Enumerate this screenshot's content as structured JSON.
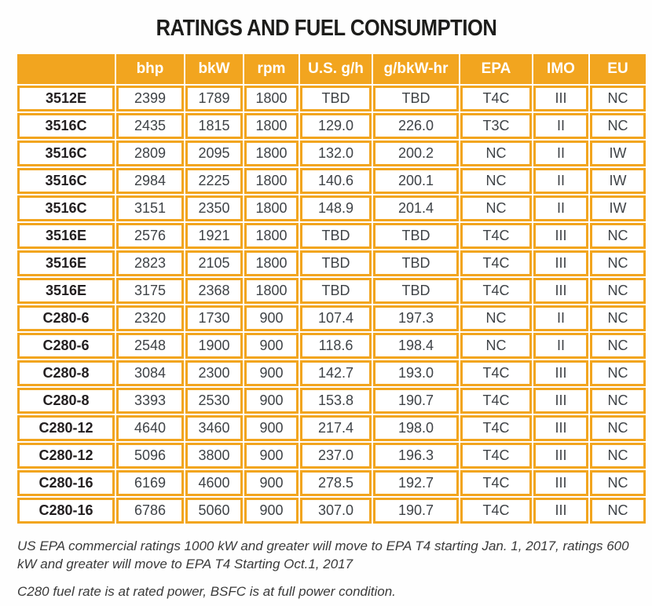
{
  "title": "RATINGS AND FUEL CONSUMPTION",
  "colors": {
    "accent_orange": "#F2A51F",
    "header_text": "#FFFFFF",
    "body_text": "#3F4347",
    "model_text": "#231F20",
    "title_text": "#1D1D1B"
  },
  "table": {
    "columns": [
      "",
      "bhp",
      "bkW",
      "rpm",
      "U.S. g/h",
      "g/bkW-hr",
      "EPA",
      "IMO",
      "EU"
    ],
    "rows": [
      [
        "3512E",
        "2399",
        "1789",
        "1800",
        "TBD",
        "TBD",
        "T4C",
        "III",
        "NC"
      ],
      [
        "3516C",
        "2435",
        "1815",
        "1800",
        "129.0",
        "226.0",
        "T3C",
        "II",
        "NC"
      ],
      [
        "3516C",
        "2809",
        "2095",
        "1800",
        "132.0",
        "200.2",
        "NC",
        "II",
        "IW"
      ],
      [
        "3516C",
        "2984",
        "2225",
        "1800",
        "140.6",
        "200.1",
        "NC",
        "II",
        "IW"
      ],
      [
        "3516C",
        "3151",
        "2350",
        "1800",
        "148.9",
        "201.4",
        "NC",
        "II",
        "IW"
      ],
      [
        "3516E",
        "2576",
        "1921",
        "1800",
        "TBD",
        "TBD",
        "T4C",
        "III",
        "NC"
      ],
      [
        "3516E",
        "2823",
        "2105",
        "1800",
        "TBD",
        "TBD",
        "T4C",
        "III",
        "NC"
      ],
      [
        "3516E",
        "3175",
        "2368",
        "1800",
        "TBD",
        "TBD",
        "T4C",
        "III",
        "NC"
      ],
      [
        "C280-6",
        "2320",
        "1730",
        "900",
        "107.4",
        "197.3",
        "NC",
        "II",
        "NC"
      ],
      [
        "C280-6",
        "2548",
        "1900",
        "900",
        "118.6",
        "198.4",
        "NC",
        "II",
        "NC"
      ],
      [
        "C280-8",
        "3084",
        "2300",
        "900",
        "142.7",
        "193.0",
        "T4C",
        "III",
        "NC"
      ],
      [
        "C280-8",
        "3393",
        "2530",
        "900",
        "153.8",
        "190.7",
        "T4C",
        "III",
        "NC"
      ],
      [
        "C280-12",
        "4640",
        "3460",
        "900",
        "217.4",
        "198.0",
        "T4C",
        "III",
        "NC"
      ],
      [
        "C280-12",
        "5096",
        "3800",
        "900",
        "237.0",
        "196.3",
        "T4C",
        "III",
        "NC"
      ],
      [
        "C280-16",
        "6169",
        "4600",
        "900",
        "278.5",
        "192.7",
        "T4C",
        "III",
        "NC"
      ],
      [
        "C280-16",
        "6786",
        "5060",
        "900",
        "307.0",
        "190.7",
        "T4C",
        "III",
        "NC"
      ]
    ]
  },
  "footnotes": [
    "US EPA commercial ratings 1000 kW and greater will move to EPA T4 starting Jan. 1, 2017, ratings 600 kW and greater will move to EPA T4 Starting Oct.1, 2017",
    "C280 fuel rate is at rated power, BSFC is at full power condition."
  ]
}
